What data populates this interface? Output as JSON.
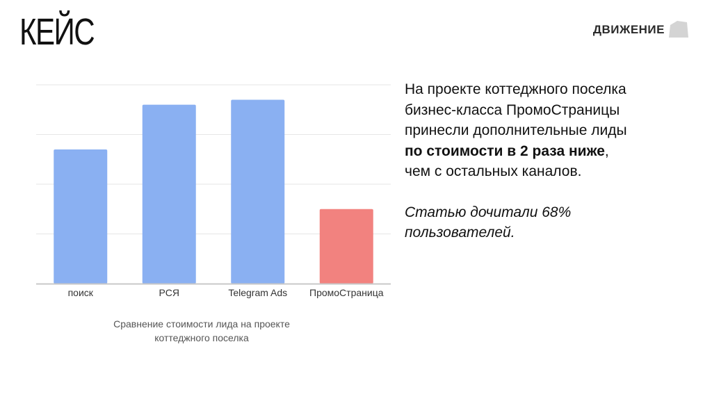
{
  "slide": {
    "title": "КЕЙС",
    "logo_text": "ДВИЖЕНИЕ"
  },
  "description": {
    "line1": "На проекте коттеджного поселка",
    "line2": "бизнес-класса ПромоСтраницы",
    "line3": "принесли дополнительные лиды",
    "highlight": "по стоимости в 2 раза ниже",
    "highlight_suffix": ",",
    "line5": "чем с остальных каналов.",
    "note_line1": "Статью дочитали 68%",
    "note_line2": "пользователей."
  },
  "caption": {
    "line1": "Сравнение стоимости лида на проекте",
    "line2": "коттеджного поселка"
  },
  "colors": {
    "bar_default": "#8ab0f2",
    "bar_highlight": "#f2827f",
    "grid": "#e6e6e6",
    "axis": "#c8c8c8",
    "tick_label": "#333333"
  },
  "chart_data": {
    "type": "bar",
    "title": "",
    "xlabel": "",
    "ylabel": "",
    "categories": [
      "поиск",
      "РСЯ",
      "Telegram Ads",
      "ПромоСтраница"
    ],
    "values": [
      2.7,
      3.6,
      3.7,
      1.5
    ],
    "highlight_category": "ПромоСтраница",
    "ylim": [
      0,
      4
    ],
    "grid": true,
    "legend": "none"
  }
}
